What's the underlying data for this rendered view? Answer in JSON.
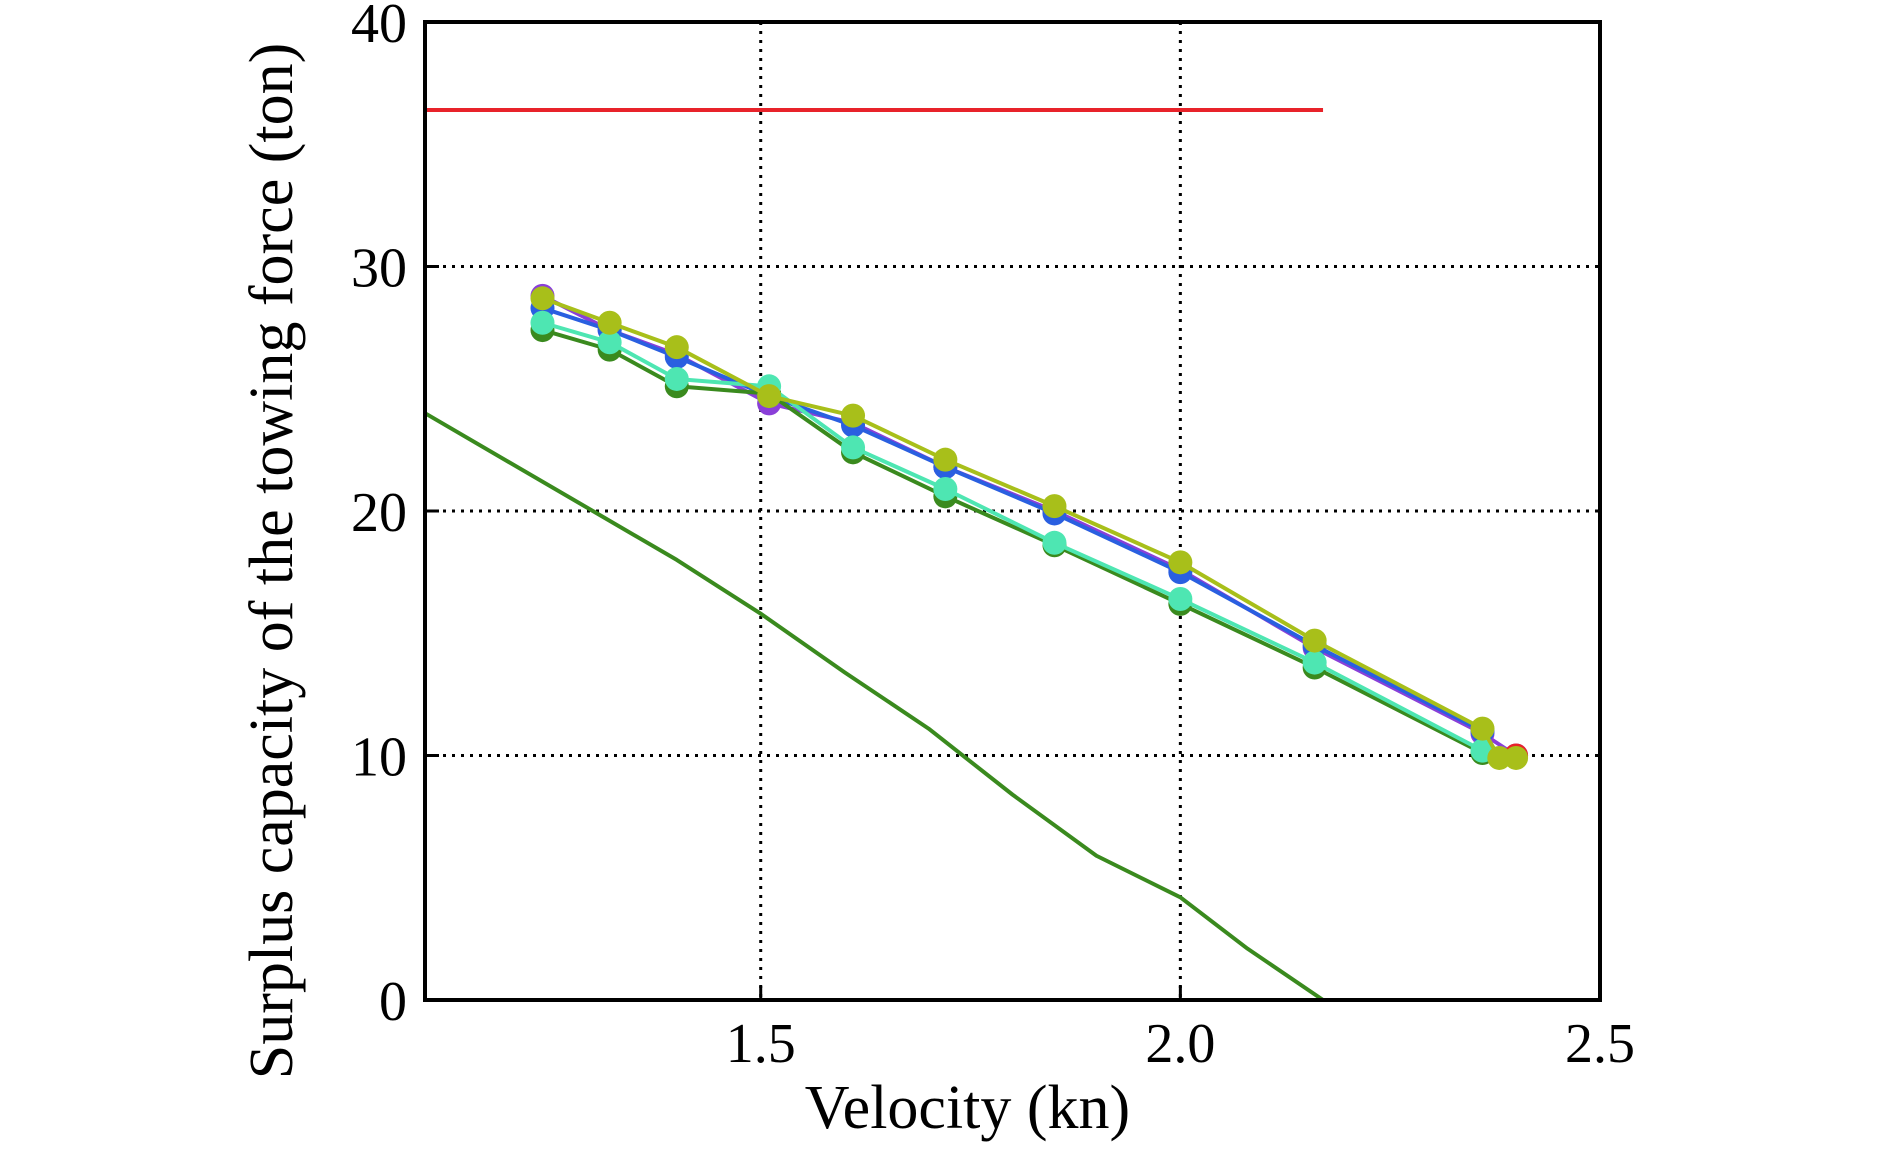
{
  "chart_data": {
    "type": "line",
    "title": "",
    "xlabel": "Velocity (kn)",
    "ylabel": "Surplus capacity of the towing force (ton)",
    "xlim": [
      1.1,
      2.5
    ],
    "ylim": [
      0,
      40
    ],
    "x_ticks": [
      "1.5",
      "2.0",
      "2.5"
    ],
    "x_tick_values": [
      1.5,
      2.0,
      2.5
    ],
    "y_ticks": [
      "0",
      "10",
      "20",
      "30",
      "40"
    ],
    "y_tick_values": [
      0,
      10,
      20,
      30,
      40
    ],
    "grid": true,
    "grid_style": "dotted",
    "series": [
      {
        "color": "#e8232a",
        "markers": false,
        "points": [
          [
            1.1,
            36.4
          ],
          [
            2.17,
            36.4
          ]
        ]
      },
      {
        "color": "#3a8a1e",
        "markers": false,
        "points": [
          [
            1.1,
            24.0
          ],
          [
            1.2,
            22.0
          ],
          [
            1.3,
            20.0
          ],
          [
            1.4,
            18.0
          ],
          [
            1.5,
            15.8
          ],
          [
            1.6,
            13.4
          ],
          [
            1.7,
            11.1
          ],
          [
            1.8,
            8.4
          ],
          [
            1.9,
            5.9
          ],
          [
            2.0,
            4.2
          ],
          [
            2.08,
            2.1
          ],
          [
            2.17,
            0.0
          ]
        ]
      },
      {
        "color": "#8a3fd8",
        "markers": true,
        "points": [
          [
            1.24,
            28.8
          ],
          [
            1.32,
            27.4
          ],
          [
            1.4,
            26.4
          ],
          [
            1.51,
            24.4
          ],
          [
            1.61,
            23.6
          ],
          [
            1.72,
            21.8
          ],
          [
            1.85,
            20.0
          ],
          [
            2.0,
            17.6
          ],
          [
            2.16,
            14.4
          ],
          [
            2.36,
            10.9
          ],
          [
            2.4,
            10.0
          ]
        ]
      },
      {
        "color": "#e8232a",
        "markers": true,
        "points": [
          [
            2.4,
            10.0
          ]
        ]
      },
      {
        "color": "#2a5fe0",
        "markers": true,
        "points": [
          [
            1.24,
            28.3
          ],
          [
            1.32,
            27.4
          ],
          [
            1.4,
            26.3
          ],
          [
            1.51,
            24.7
          ],
          [
            1.61,
            23.5
          ],
          [
            1.72,
            21.8
          ],
          [
            1.85,
            19.9
          ],
          [
            2.0,
            17.5
          ],
          [
            2.16,
            14.5
          ],
          [
            2.36,
            11.0
          ]
        ]
      },
      {
        "color": "#3a8a1e",
        "markers": true,
        "points": [
          [
            1.24,
            27.4
          ],
          [
            1.32,
            26.6
          ],
          [
            1.4,
            25.1
          ],
          [
            1.51,
            24.8
          ],
          [
            1.61,
            22.4
          ],
          [
            1.72,
            20.6
          ],
          [
            1.85,
            18.6
          ],
          [
            2.0,
            16.2
          ],
          [
            2.16,
            13.6
          ],
          [
            2.36,
            10.1
          ]
        ]
      },
      {
        "color": "#4ee6b2",
        "markers": true,
        "points": [
          [
            1.24,
            27.7
          ],
          [
            1.32,
            26.9
          ],
          [
            1.4,
            25.4
          ],
          [
            1.51,
            25.1
          ],
          [
            1.61,
            22.6
          ],
          [
            1.72,
            20.9
          ],
          [
            1.85,
            18.7
          ],
          [
            2.0,
            16.4
          ],
          [
            2.16,
            13.8
          ],
          [
            2.36,
            10.2
          ]
        ]
      },
      {
        "color": "#a8bf1a",
        "markers": true,
        "points": [
          [
            1.24,
            28.7
          ],
          [
            1.32,
            27.7
          ],
          [
            1.4,
            26.7
          ],
          [
            1.51,
            24.7
          ],
          [
            1.61,
            23.9
          ],
          [
            1.72,
            22.1
          ],
          [
            1.85,
            20.2
          ],
          [
            2.0,
            17.9
          ],
          [
            2.16,
            14.7
          ],
          [
            2.36,
            11.1
          ],
          [
            2.38,
            9.9
          ],
          [
            2.4,
            9.9
          ]
        ]
      }
    ]
  }
}
